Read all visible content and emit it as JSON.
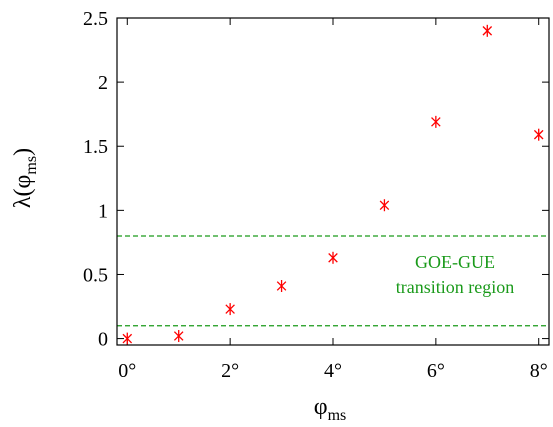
{
  "chart_data": {
    "type": "scatter",
    "x": [
      0,
      1,
      2,
      3,
      4,
      5,
      6,
      7,
      8
    ],
    "y": [
      0.0,
      0.02,
      0.23,
      0.41,
      0.63,
      1.04,
      1.69,
      2.4,
      1.59
    ],
    "xlim": [
      -0.2,
      8.2
    ],
    "ylim": [
      -0.05,
      2.5
    ],
    "xticks": [
      0,
      2,
      4,
      6,
      8
    ],
    "xtick_labels": [
      "0°",
      "2°",
      "4°",
      "6°",
      "8°"
    ],
    "yticks": [
      0,
      0.5,
      1,
      1.5,
      2,
      2.5
    ],
    "ytick_labels": [
      "0",
      "0.5",
      "1",
      "1.5",
      "2",
      "2.5"
    ],
    "xlabel": {
      "main": "φ",
      "sub": "ms"
    },
    "ylabel": {
      "prefix": "λ(φ",
      "sub": "ms",
      "suffix": ")"
    },
    "reference_lines": [
      0.1,
      0.8
    ],
    "annotation": [
      "GOE-GUE",
      "transition region"
    ],
    "marker": "asterisk",
    "grid": false
  },
  "colors": {
    "marker": "#ff0000",
    "reference_line": "#1a9a1a",
    "annotation": "#1a9a1a",
    "axis": "#000000"
  }
}
